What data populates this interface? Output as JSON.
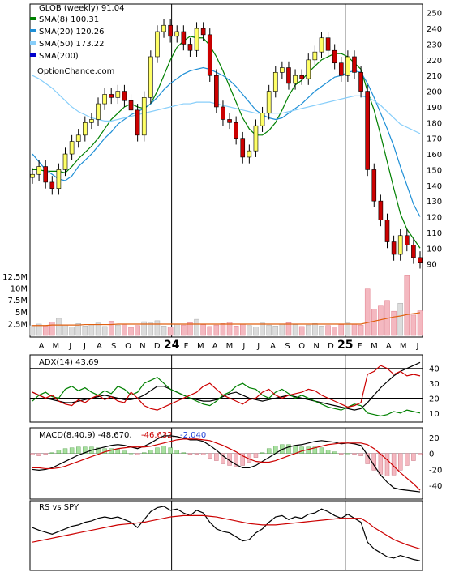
{
  "chart_data": {
    "type": "line",
    "panels": [
      {
        "name": "price",
        "title": "GLOB (weekly) 91.04",
        "legend": [
          {
            "label": "SMA(8) 100.31",
            "color": "#008000"
          },
          {
            "label": "SMA(20) 120.26",
            "color": "#1e8fd6"
          },
          {
            "label": "SMA(50) 173.22",
            "color": "#87cefa"
          },
          {
            "label": "SMA(200)",
            "color": "#0000cc"
          }
        ],
        "watermark": "OptionChance.com",
        "y_ticks": [
          90,
          100,
          110,
          120,
          130,
          140,
          150,
          160,
          170,
          180,
          190,
          200,
          210,
          220,
          230,
          240,
          250
        ],
        "ylim": [
          80,
          254
        ],
        "volume_ticks": [
          "2.5M",
          "5M",
          "7.5M",
          "10M",
          "12.5M"
        ],
        "volume_lim_millions": [
          0,
          13
        ],
        "close_series": [
          147,
          152,
          142,
          138,
          150,
          160,
          168,
          172,
          180,
          182,
          192,
          198,
          196,
          200,
          194,
          188,
          172,
          196,
          222,
          238,
          242,
          235,
          238,
          230,
          226,
          240,
          236,
          210,
          190,
          182,
          180,
          170,
          158,
          162,
          178,
          186,
          200,
          212,
          215,
          205,
          210,
          208,
          220,
          225,
          234,
          226,
          218,
          210,
          222,
          212,
          200,
          150,
          130,
          118,
          104,
          96,
          108,
          102,
          94,
          91
        ],
        "sma_series": [
          {
            "name": "SMA(8)",
            "values": [
              150,
              150,
              149,
              149,
              149,
              148,
              152,
              157,
              161,
              165,
              170,
              176,
              182,
              186,
              190,
              192,
              190,
              189,
              192,
              200,
              210,
              220,
              228,
              232,
              235,
              234,
              234,
              229,
              222,
              213,
              203,
              193,
              183,
              176,
              172,
              172,
              175,
              180,
              188,
              197,
              204,
              207,
              212,
              216,
              220,
              222,
              224,
              224,
              222,
              218,
              214,
              200,
              188,
              172,
              155,
              138,
              122,
              112,
              106,
              100
            ]
          },
          {
            "name": "SMA(20)",
            "values": [
              160,
              155,
              150,
              147,
              144,
              143,
              146,
              152,
              156,
              160,
              165,
              170,
              174,
              179,
              182,
              185,
              187,
              189,
              192,
              196,
              201,
              205,
              208,
              211,
              213,
              214,
              215,
              214,
              212,
              210,
              207,
              203,
              198,
              193,
              188,
              185,
              183,
              182,
              183,
              186,
              189,
              192,
              196,
              200,
              203,
              206,
              209,
              210,
              212,
              213,
              212,
              205,
              196,
              186,
              176,
              165,
              152,
              140,
              128,
              120
            ]
          },
          {
            "name": "SMA(50)",
            "values": [
              210,
              208,
              205,
              202,
              198,
              194,
              190,
              187,
              185,
              183,
              182,
              181,
              181,
              182,
              183,
              184,
              185,
              186,
              187,
              188,
              189,
              190,
              191,
              192,
              192,
              193,
              193,
              193,
              192,
              191,
              190,
              189,
              188,
              187,
              186,
              186,
              186,
              186,
              186,
              187,
              188,
              189,
              190,
              191,
              192,
              193,
              194,
              195,
              196,
              197,
              197,
              196,
              194,
              191,
              187,
              183,
              179,
              177,
              175,
              173
            ]
          }
        ],
        "volume_series_millions": [
          2.1,
          2.4,
          2.0,
          2.8,
          3.6,
          2.2,
          1.8,
          2.5,
          2.0,
          2.3,
          2.6,
          1.9,
          3.0,
          2.2,
          2.4,
          1.7,
          2.1,
          2.9,
          2.6,
          3.1,
          2.0,
          1.8,
          2.4,
          2.2,
          2.7,
          3.4,
          2.3,
          1.9,
          2.2,
          2.5,
          2.8,
          2.0,
          2.4,
          2.1,
          1.8,
          2.6,
          2.2,
          2.0,
          2.4,
          2.7,
          2.3,
          1.9,
          2.2,
          2.5,
          2.0,
          2.1,
          1.8,
          2.3,
          2.6,
          2.4,
          2.2,
          9.8,
          5.6,
          6.2,
          7.4,
          5.1,
          6.8,
          12.6,
          4.3,
          5.2
        ],
        "volume_avg_series_millions": [
          2.1,
          2.1,
          2.1,
          2.2,
          2.2,
          2.2,
          2.2,
          2.2,
          2.3,
          2.3,
          2.3,
          2.3,
          2.3,
          2.4,
          2.4,
          2.4,
          2.4,
          2.4,
          2.4,
          2.4,
          2.4,
          2.4,
          2.4,
          2.4,
          2.4,
          2.4,
          2.4,
          2.4,
          2.4,
          2.4,
          2.4,
          2.4,
          2.4,
          2.4,
          2.4,
          2.4,
          2.4,
          2.4,
          2.4,
          2.4,
          2.4,
          2.4,
          2.4,
          2.4,
          2.4,
          2.4,
          2.4,
          2.4,
          2.4,
          2.4,
          2.4,
          2.7,
          3.0,
          3.3,
          3.6,
          3.9,
          4.1,
          4.4,
          4.6,
          4.8
        ]
      },
      {
        "name": "adx",
        "title": "ADX(14) 43.69",
        "y_ticks": [
          10,
          20,
          30,
          40
        ],
        "ylim": [
          5,
          48
        ],
        "lines": [
          {
            "name": "ADX",
            "color": "#000000",
            "values": [
              24,
              22,
              20,
              19,
              18,
              17,
              17,
              18,
              19,
              20,
              21,
              22,
              21,
              20,
              19,
              19,
              20,
              22,
              25,
              28,
              28,
              26,
              24,
              22,
              20,
              19,
              18,
              18,
              19,
              21,
              23,
              24,
              22,
              20,
              19,
              18,
              19,
              20,
              21,
              22,
              21,
              20,
              19,
              18,
              17,
              16,
              15,
              14,
              13,
              12,
              13,
              17,
              22,
              27,
              31,
              35,
              38,
              40,
              42,
              44
            ]
          },
          {
            "name": "+DI",
            "color": "#008000",
            "values": [
              18,
              22,
              24,
              21,
              20,
              26,
              28,
              25,
              27,
              24,
              22,
              25,
              23,
              28,
              26,
              22,
              24,
              30,
              32,
              34,
              30,
              26,
              24,
              22,
              20,
              18,
              16,
              15,
              18,
              22,
              24,
              28,
              30,
              27,
              26,
              22,
              20,
              24,
              26,
              23,
              20,
              22,
              20,
              18,
              16,
              14,
              13,
              12,
              14,
              16,
              15,
              10,
              9,
              8,
              9,
              11,
              10,
              12,
              11,
              10
            ]
          },
          {
            "name": "-DI",
            "color": "#cc0000",
            "values": [
              24,
              22,
              20,
              22,
              18,
              16,
              15,
              19,
              17,
              20,
              22,
              19,
              21,
              18,
              17,
              24,
              20,
              15,
              13,
              12,
              14,
              16,
              18,
              20,
              22,
              24,
              28,
              30,
              26,
              22,
              20,
              18,
              16,
              19,
              20,
              24,
              26,
              22,
              20,
              22,
              23,
              24,
              26,
              25,
              22,
              20,
              18,
              16,
              14,
              15,
              17,
              36,
              38,
              42,
              40,
              36,
              38,
              35,
              36,
              35
            ]
          }
        ],
        "ref_lines": [
          20,
          40
        ]
      },
      {
        "name": "macd",
        "title": "MACD(8,40,9) -48.670,",
        "values_text": [
          "-46.632,",
          "-2.040"
        ],
        "value_colors": [
          "#cc0000",
          "#1e3fd6"
        ],
        "y_ticks": [
          -40,
          -20,
          0,
          20
        ],
        "ylim": [
          -55,
          30
        ],
        "lines": [
          {
            "name": "MACD",
            "color": "#000000",
            "values": [
              -20,
              -21,
              -20,
              -18,
              -14,
              -10,
              -6,
              -2,
              1,
              4,
              6,
              8,
              10,
              11,
              10,
              8,
              6,
              9,
              13,
              18,
              22,
              22,
              21,
              19,
              17,
              17,
              15,
              10,
              4,
              -3,
              -9,
              -14,
              -18,
              -18,
              -15,
              -10,
              -5,
              0,
              5,
              8,
              10,
              11,
              13,
              15,
              16,
              15,
              14,
              12,
              13,
              12,
              10,
              -2,
              -15,
              -27,
              -36,
              -43,
              -45,
              -46,
              -47,
              -48
            ]
          },
          {
            "name": "Signal",
            "color": "#cc0000",
            "values": [
              -18,
              -18,
              -19,
              -19,
              -18,
              -16,
              -13,
              -10,
              -7,
              -4,
              -1,
              2,
              4,
              6,
              7,
              8,
              8,
              8,
              9,
              11,
              13,
              15,
              17,
              18,
              18,
              18,
              17,
              16,
              13,
              10,
              6,
              2,
              -3,
              -7,
              -10,
              -11,
              -11,
              -9,
              -6,
              -3,
              0,
              3,
              5,
              7,
              9,
              11,
              12,
              13,
              13,
              13,
              13,
              11,
              6,
              -1,
              -8,
              -16,
              -24,
              -31,
              -38,
              -46
            ]
          }
        ]
      },
      {
        "name": "rs",
        "title": "RS vs SPY",
        "ylim": [
          0,
          100
        ],
        "lines": [
          {
            "name": "RS",
            "color": "#000000",
            "values": [
              62,
              58,
              55,
              52,
              56,
              60,
              64,
              66,
              70,
              72,
              76,
              78,
              76,
              78,
              74,
              70,
              62,
              74,
              86,
              92,
              94,
              88,
              90,
              84,
              80,
              88,
              84,
              70,
              60,
              56,
              54,
              48,
              42,
              44,
              54,
              60,
              70,
              78,
              80,
              74,
              78,
              76,
              82,
              84,
              90,
              86,
              80,
              76,
              82,
              76,
              70,
              40,
              30,
              24,
              18,
              16,
              20,
              17,
              14,
              12
            ]
          },
          {
            "name": "RS MA",
            "color": "#cc0000",
            "values": [
              40,
              42,
              44,
              46,
              48,
              50,
              52,
              54,
              56,
              58,
              60,
              62,
              64,
              66,
              67,
              68,
              69,
              70,
              72,
              74,
              76,
              78,
              79,
              80,
              80,
              80,
              80,
              79,
              78,
              76,
              74,
              72,
              70,
              68,
              67,
              66,
              66,
              66,
              67,
              68,
              69,
              70,
              71,
              72,
              73,
              74,
              75,
              76,
              76,
              76,
              76,
              70,
              62,
              56,
              50,
              44,
              40,
              36,
              33,
              30
            ]
          }
        ]
      }
    ],
    "x_tick_labels": [
      "A",
      "M",
      "J",
      "J",
      "A",
      "S",
      "O",
      "N",
      "D",
      "24",
      "F",
      "M",
      "A",
      "M",
      "J",
      "J",
      "A",
      "S",
      "O",
      "N",
      "D",
      "25",
      "F",
      "M",
      "A",
      "M",
      "J"
    ]
  }
}
